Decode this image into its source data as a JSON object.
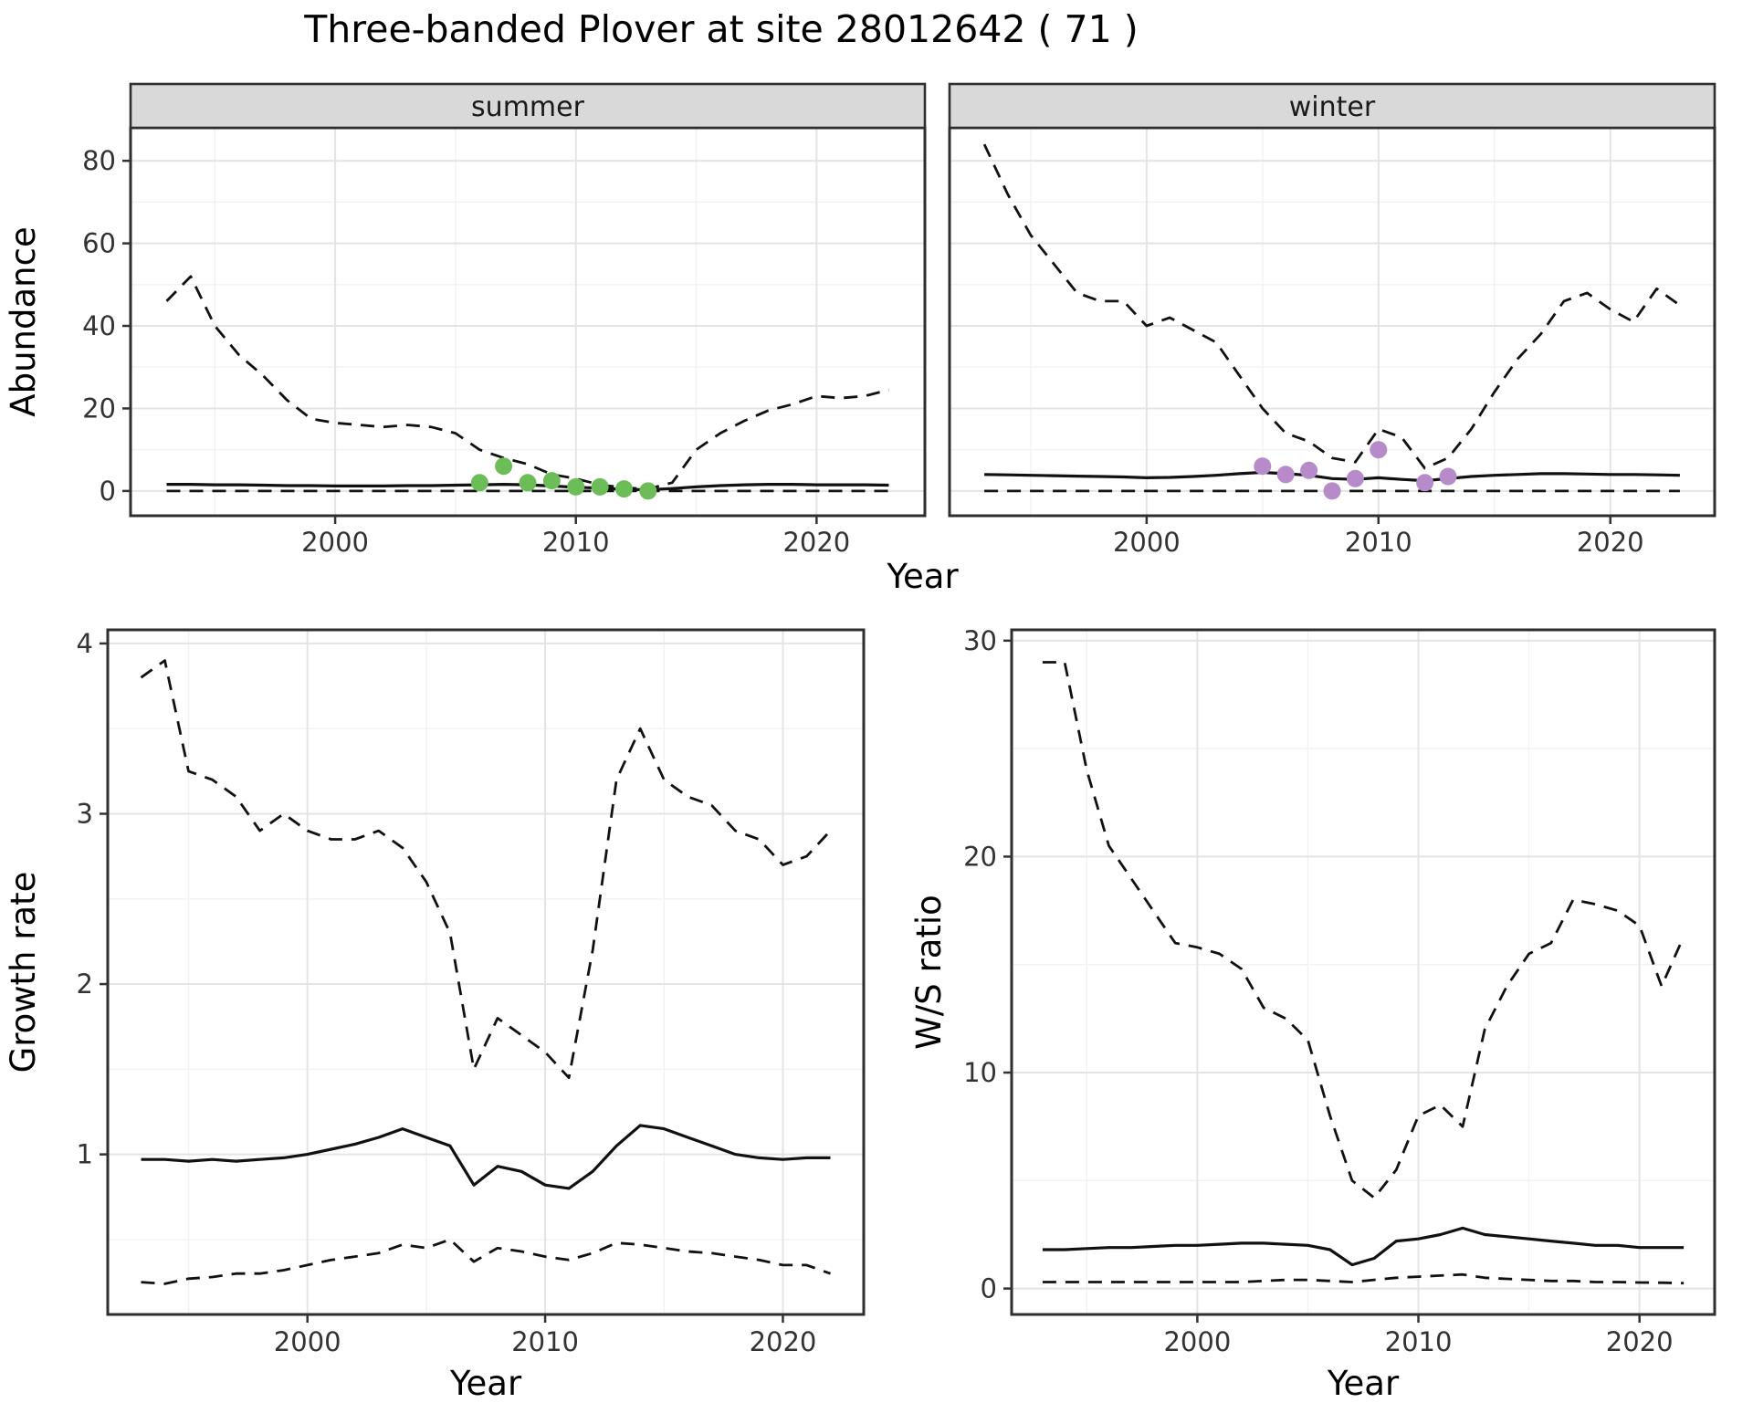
{
  "title": "Three-banded Plover at site 28012642 ( 71 )",
  "accent_colors": {
    "summer_points": "#6cbd58",
    "winter_points": "#b78bc9",
    "line": "#111111",
    "strip_background": "#d9d9d9"
  },
  "chart_data": [
    {
      "id": "summer-abundance",
      "type": "line",
      "facet": "summer",
      "xlabel": "Year",
      "ylabel": "Abundance",
      "xlim": [
        1991.5,
        2024.5
      ],
      "ylim": [
        -6,
        88
      ],
      "xticks": [
        2000,
        2010,
        2020
      ],
      "yticks": [
        0,
        20,
        40,
        60,
        80
      ],
      "grid": true,
      "legend": "none",
      "x": [
        1993,
        1994,
        1995,
        1996,
        1997,
        1998,
        1999,
        2000,
        2001,
        2002,
        2003,
        2004,
        2005,
        2006,
        2007,
        2008,
        2009,
        2010,
        2011,
        2012,
        2013,
        2014,
        2015,
        2016,
        2017,
        2018,
        2019,
        2020,
        2021,
        2022,
        2023
      ],
      "series": [
        {
          "name": "upper-ci",
          "style": "dashed",
          "values": [
            46,
            52,
            40,
            33,
            28,
            22,
            17.5,
            16.5,
            16,
            15.5,
            16,
            15.5,
            14,
            10,
            8,
            6.5,
            4,
            3,
            1.5,
            0.8,
            0.5,
            2,
            10,
            14,
            17,
            19.5,
            21,
            23,
            22.5,
            23,
            24.5
          ]
        },
        {
          "name": "median",
          "style": "solid",
          "values": [
            1.6,
            1.6,
            1.5,
            1.5,
            1.4,
            1.3,
            1.3,
            1.2,
            1.2,
            1.2,
            1.3,
            1.3,
            1.4,
            1.5,
            1.6,
            1.5,
            1.2,
            0.9,
            0.7,
            0.4,
            0.3,
            0.6,
            1.0,
            1.3,
            1.5,
            1.6,
            1.6,
            1.5,
            1.5,
            1.5,
            1.4
          ]
        },
        {
          "name": "lower-ci",
          "style": "dashed",
          "values": [
            0,
            0,
            0,
            0,
            0,
            0,
            0,
            0,
            0,
            0,
            0,
            0,
            0,
            0,
            0,
            0,
            0,
            0,
            0,
            0,
            0,
            0,
            0,
            0,
            0,
            0,
            0,
            0,
            0,
            0,
            0
          ]
        }
      ],
      "points": {
        "name": "observed-counts",
        "color": "#6cbd58",
        "x": [
          2006,
          2007,
          2008,
          2009,
          2010,
          2011,
          2012,
          2013
        ],
        "y": [
          2,
          6,
          2,
          2.5,
          1,
          1,
          0.5,
          0
        ]
      }
    },
    {
      "id": "winter-abundance",
      "type": "line",
      "facet": "winter",
      "xlabel": "Year",
      "ylabel": "Abundance",
      "xlim": [
        1991.5,
        2024.5
      ],
      "ylim": [
        -6,
        88
      ],
      "xticks": [
        2000,
        2010,
        2020
      ],
      "yticks": [
        0,
        20,
        40,
        60,
        80
      ],
      "grid": true,
      "legend": "none",
      "x": [
        1993,
        1994,
        1995,
        1996,
        1997,
        1998,
        1999,
        2000,
        2001,
        2002,
        2003,
        2004,
        2005,
        2006,
        2007,
        2008,
        2009,
        2010,
        2011,
        2012,
        2013,
        2014,
        2015,
        2016,
        2017,
        2018,
        2019,
        2020,
        2021,
        2022,
        2023
      ],
      "series": [
        {
          "name": "upper-ci",
          "style": "dashed",
          "values": [
            84,
            72,
            62,
            55,
            48,
            46,
            46,
            40,
            42,
            39,
            36,
            28,
            20,
            14,
            12,
            8,
            7,
            15,
            13,
            5.5,
            8,
            15,
            24,
            32,
            38,
            46,
            48,
            44,
            41,
            49,
            45
          ]
        },
        {
          "name": "median",
          "style": "solid",
          "values": [
            4.0,
            3.9,
            3.8,
            3.7,
            3.6,
            3.5,
            3.4,
            3.2,
            3.3,
            3.5,
            3.8,
            4.2,
            4.5,
            4.2,
            3.8,
            3.0,
            2.8,
            3.2,
            2.8,
            2.5,
            3.0,
            3.5,
            3.8,
            4.0,
            4.2,
            4.2,
            4.1,
            4.0,
            4.0,
            3.9,
            3.8
          ]
        },
        {
          "name": "lower-ci",
          "style": "dashed",
          "values": [
            0,
            0,
            0,
            0,
            0,
            0,
            0,
            0,
            0,
            0,
            0,
            0,
            0,
            0,
            0,
            0,
            0,
            0,
            0,
            0,
            0,
            0,
            0,
            0,
            0,
            0,
            0,
            0,
            0,
            0,
            0
          ]
        }
      ],
      "points": {
        "name": "observed-counts",
        "color": "#b78bc9",
        "x": [
          2005,
          2006,
          2007,
          2008,
          2009,
          2010,
          2012,
          2013
        ],
        "y": [
          6,
          4,
          5,
          0,
          3,
          10,
          2,
          3.5
        ]
      }
    },
    {
      "id": "growth-rate",
      "type": "line",
      "facet": null,
      "xlabel": "Year",
      "ylabel": "Growth rate",
      "xlim": [
        1991.6,
        2023.4
      ],
      "ylim": [
        0.06,
        4.08
      ],
      "xticks": [
        2000,
        2010,
        2020
      ],
      "yticks": [
        1,
        2,
        3,
        4
      ],
      "grid": true,
      "legend": "none",
      "x": [
        1993,
        1994,
        1995,
        1996,
        1997,
        1998,
        1999,
        2000,
        2001,
        2002,
        2003,
        2004,
        2005,
        2006,
        2007,
        2008,
        2009,
        2010,
        2011,
        2012,
        2013,
        2014,
        2015,
        2016,
        2017,
        2018,
        2019,
        2020,
        2021,
        2022
      ],
      "series": [
        {
          "name": "upper-ci",
          "style": "dashed",
          "values": [
            3.8,
            3.9,
            3.25,
            3.2,
            3.1,
            2.9,
            3.0,
            2.9,
            2.85,
            2.85,
            2.9,
            2.8,
            2.6,
            2.3,
            1.5,
            1.8,
            1.7,
            1.6,
            1.45,
            2.2,
            3.2,
            3.5,
            3.2,
            3.1,
            3.05,
            2.9,
            2.85,
            2.7,
            2.75,
            2.9
          ]
        },
        {
          "name": "median",
          "style": "solid",
          "values": [
            0.97,
            0.97,
            0.96,
            0.97,
            0.96,
            0.97,
            0.98,
            1.0,
            1.03,
            1.06,
            1.1,
            1.15,
            1.1,
            1.05,
            0.82,
            0.93,
            0.9,
            0.82,
            0.8,
            0.9,
            1.05,
            1.17,
            1.15,
            1.1,
            1.05,
            1.0,
            0.98,
            0.97,
            0.98,
            0.98
          ]
        },
        {
          "name": "lower-ci",
          "style": "dashed",
          "values": [
            0.25,
            0.24,
            0.27,
            0.28,
            0.3,
            0.3,
            0.32,
            0.35,
            0.38,
            0.4,
            0.42,
            0.47,
            0.45,
            0.5,
            0.37,
            0.45,
            0.43,
            0.4,
            0.38,
            0.42,
            0.48,
            0.47,
            0.45,
            0.43,
            0.42,
            0.4,
            0.38,
            0.35,
            0.35,
            0.3
          ]
        }
      ],
      "points": null
    },
    {
      "id": "ws-ratio",
      "type": "line",
      "facet": null,
      "xlabel": "Year",
      "ylabel": "W/S ratio",
      "xlim": [
        1991.6,
        2023.4
      ],
      "ylim": [
        -1.2,
        30.5
      ],
      "xticks": [
        2000,
        2010,
        2020
      ],
      "yticks": [
        0,
        10,
        20,
        30
      ],
      "grid": true,
      "legend": "none",
      "x": [
        1993,
        1994,
        1995,
        1996,
        1997,
        1998,
        1999,
        2000,
        2001,
        2002,
        2003,
        2004,
        2005,
        2006,
        2007,
        2008,
        2009,
        2010,
        2011,
        2012,
        2013,
        2014,
        2015,
        2016,
        2017,
        2018,
        2019,
        2020,
        2021,
        2022
      ],
      "series": [
        {
          "name": "upper-ci",
          "style": "dashed",
          "values": [
            29,
            29,
            24,
            20.5,
            19,
            17.5,
            16,
            15.8,
            15.5,
            14.8,
            13,
            12.5,
            11.5,
            8,
            5,
            4.2,
            5.5,
            8,
            8.5,
            7.5,
            12,
            14,
            15.5,
            16,
            18,
            17.8,
            17.5,
            16.8,
            14,
            16.3
          ]
        },
        {
          "name": "median",
          "style": "solid",
          "values": [
            1.8,
            1.8,
            1.85,
            1.9,
            1.9,
            1.95,
            2.0,
            2.0,
            2.05,
            2.1,
            2.1,
            2.05,
            2.0,
            1.8,
            1.1,
            1.4,
            2.2,
            2.3,
            2.5,
            2.8,
            2.5,
            2.4,
            2.3,
            2.2,
            2.1,
            2.0,
            2.0,
            1.9,
            1.9,
            1.9
          ]
        },
        {
          "name": "lower-ci",
          "style": "dashed",
          "values": [
            0.3,
            0.3,
            0.3,
            0.3,
            0.3,
            0.3,
            0.3,
            0.3,
            0.3,
            0.3,
            0.35,
            0.4,
            0.4,
            0.35,
            0.3,
            0.4,
            0.5,
            0.55,
            0.6,
            0.65,
            0.5,
            0.45,
            0.4,
            0.35,
            0.35,
            0.3,
            0.3,
            0.28,
            0.27,
            0.25
          ]
        }
      ],
      "points": null
    }
  ]
}
